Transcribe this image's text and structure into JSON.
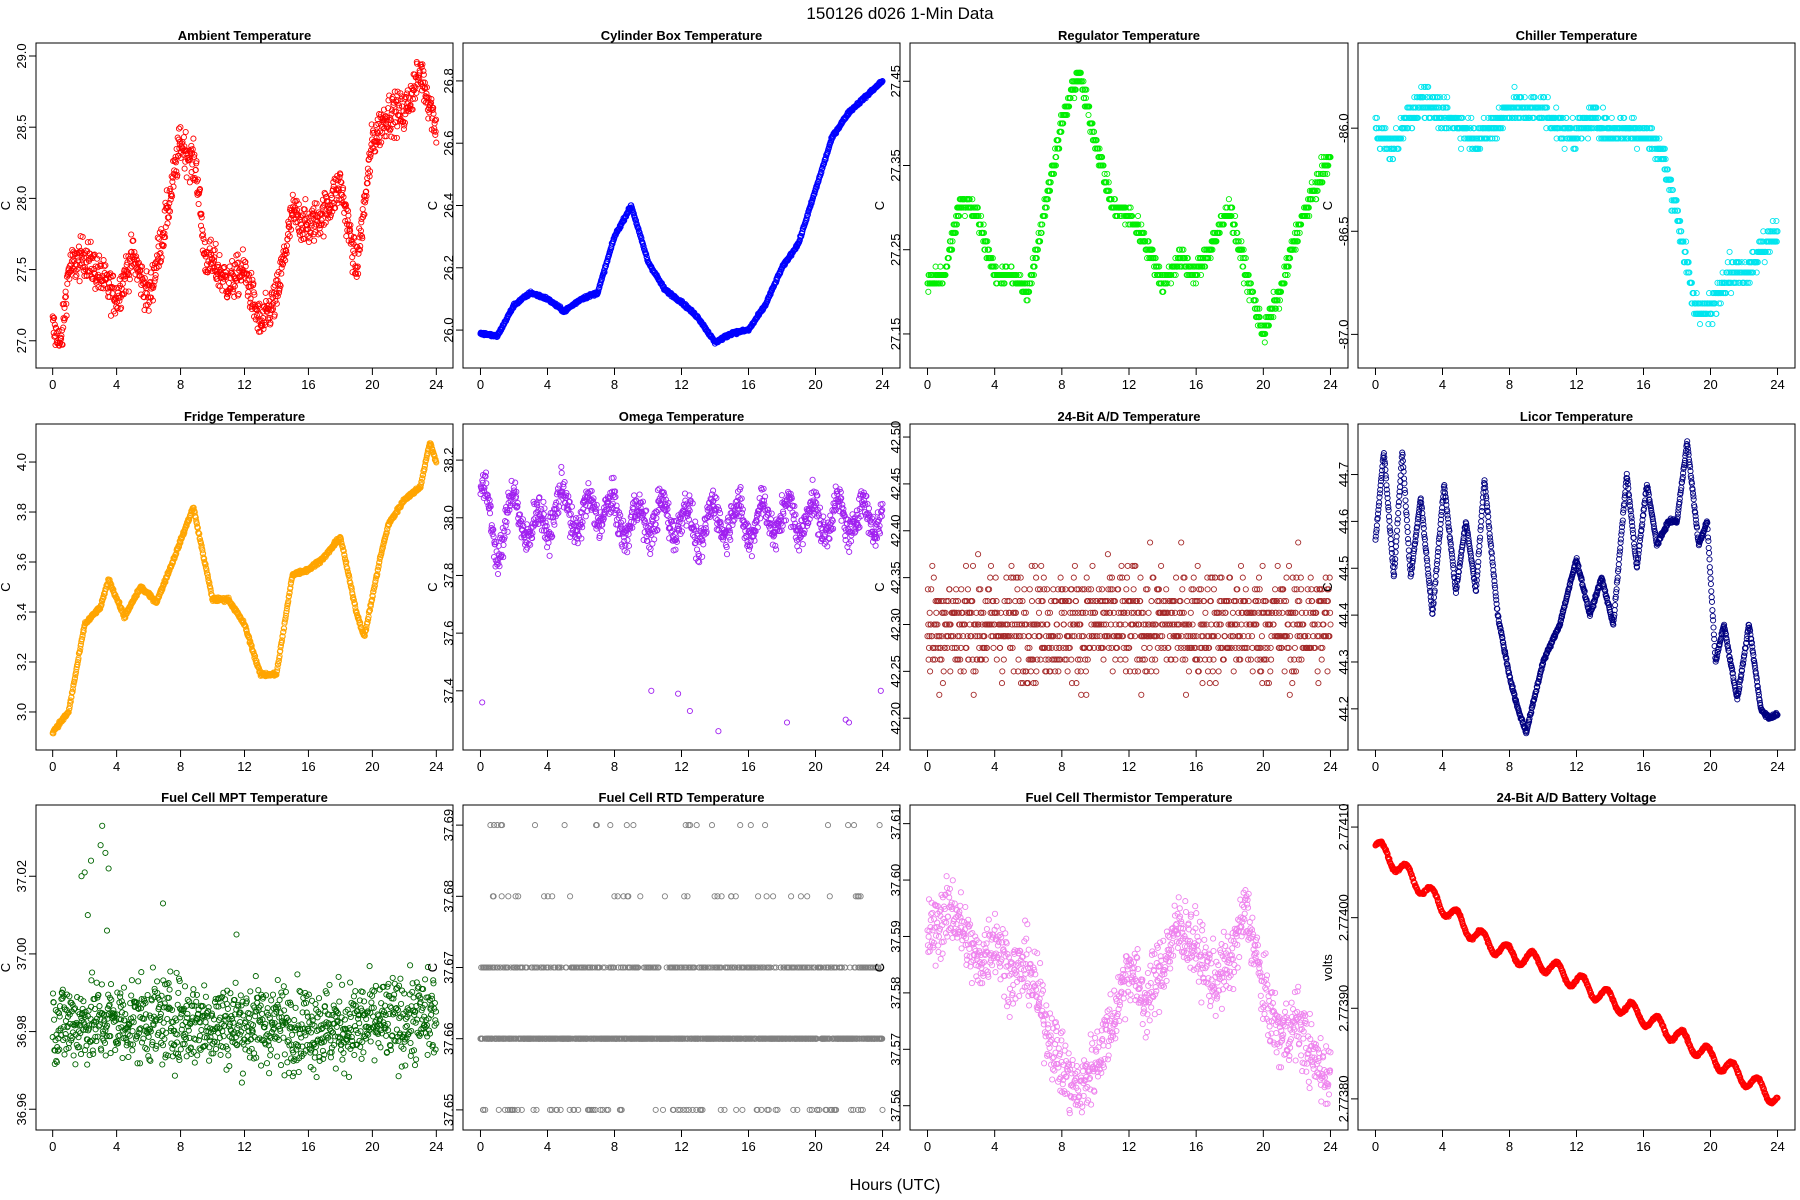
{
  "figure": {
    "title": "150126    d026    1-Min Data",
    "xlabel": "Hours (UTC)"
  },
  "chart_data": [
    {
      "type": "scatter",
      "title": "Ambient Temperature",
      "ylabel": "C",
      "color": "#ff0000",
      "xlim": [
        0,
        24
      ],
      "xticks": [
        0,
        4,
        8,
        12,
        16,
        20,
        24
      ],
      "ylim": [
        26.9,
        29.0
      ],
      "yticks": [
        "27.0",
        "27.5",
        "28.0",
        "28.5",
        "29.0"
      ],
      "keypoints": [
        [
          0,
          27.1
        ],
        [
          0.5,
          26.95
        ],
        [
          1,
          27.5
        ],
        [
          2,
          27.6
        ],
        [
          3,
          27.45
        ],
        [
          4,
          27.3
        ],
        [
          5,
          27.6
        ],
        [
          6,
          27.3
        ],
        [
          7,
          27.8
        ],
        [
          8,
          28.4
        ],
        [
          8.5,
          28.3
        ],
        [
          9,
          28.2
        ],
        [
          9.5,
          27.6
        ],
        [
          10,
          27.55
        ],
        [
          11,
          27.4
        ],
        [
          12,
          27.5
        ],
        [
          13,
          27.1
        ],
        [
          14,
          27.3
        ],
        [
          15,
          27.9
        ],
        [
          16,
          27.8
        ],
        [
          17,
          27.9
        ],
        [
          18,
          28.1
        ],
        [
          19,
          27.5
        ],
        [
          20,
          28.4
        ],
        [
          21,
          28.6
        ],
        [
          22,
          28.6
        ],
        [
          23,
          28.9
        ],
        [
          24,
          28.5
        ]
      ],
      "noise": 0.14
    },
    {
      "type": "scatter",
      "title": "Cylinder Box Temperature",
      "ylabel": "C",
      "color": "#0000ff",
      "xlim": [
        0,
        24
      ],
      "xticks": [
        0,
        4,
        8,
        12,
        16,
        20,
        24
      ],
      "ylim": [
        25.92,
        26.88
      ],
      "yticks": [
        "26.0",
        "26.2",
        "26.4",
        "26.6",
        "26.8"
      ],
      "keypoints": [
        [
          0,
          25.99
        ],
        [
          1,
          25.98
        ],
        [
          2,
          26.08
        ],
        [
          3,
          26.12
        ],
        [
          4,
          26.1
        ],
        [
          5,
          26.06
        ],
        [
          6,
          26.1
        ],
        [
          7,
          26.12
        ],
        [
          8,
          26.3
        ],
        [
          9,
          26.4
        ],
        [
          10,
          26.22
        ],
        [
          11,
          26.13
        ],
        [
          12,
          26.09
        ],
        [
          13,
          26.04
        ],
        [
          14,
          25.96
        ],
        [
          15,
          25.99
        ],
        [
          16,
          26.0
        ],
        [
          17,
          26.08
        ],
        [
          18,
          26.2
        ],
        [
          19,
          26.28
        ],
        [
          20,
          26.45
        ],
        [
          21,
          26.62
        ],
        [
          22,
          26.7
        ],
        [
          23,
          26.75
        ],
        [
          24,
          26.8
        ]
      ],
      "noise": 0.005
    },
    {
      "type": "scatter",
      "title": "Regulator Temperature",
      "ylabel": "C",
      "color": "#00ee00",
      "xlim": [
        0,
        24
      ],
      "xticks": [
        0,
        4,
        8,
        12,
        16,
        20,
        24
      ],
      "ylim": [
        27.125,
        27.48
      ],
      "yticks": [
        "27.15",
        "27.25",
        "27.35",
        "27.45"
      ],
      "keypoints": [
        [
          0,
          27.21
        ],
        [
          1,
          27.22
        ],
        [
          2,
          27.31
        ],
        [
          3,
          27.29
        ],
        [
          4,
          27.22
        ],
        [
          5,
          27.22
        ],
        [
          6,
          27.2
        ],
        [
          7,
          27.3
        ],
        [
          8,
          27.4
        ],
        [
          9,
          27.46
        ],
        [
          10,
          27.38
        ],
        [
          11,
          27.3
        ],
        [
          12,
          27.29
        ],
        [
          13,
          27.26
        ],
        [
          14,
          27.21
        ],
        [
          15,
          27.24
        ],
        [
          16,
          27.22
        ],
        [
          17,
          27.26
        ],
        [
          18,
          27.3
        ],
        [
          19,
          27.22
        ],
        [
          20,
          27.15
        ],
        [
          21,
          27.2
        ],
        [
          22,
          27.27
        ],
        [
          23,
          27.32
        ],
        [
          24,
          27.36
        ]
      ],
      "noise": 0.012,
      "quant": 0.01
    },
    {
      "type": "scatter",
      "title": "Chiller Temperature",
      "ylabel": "C",
      "color": "#00e5ee",
      "xlim": [
        0,
        24
      ],
      "xticks": [
        0,
        4,
        8,
        12,
        16,
        20,
        24
      ],
      "ylim": [
        -87.1,
        -85.65
      ],
      "yticks": [
        "-87.0",
        "-86.5",
        "-86.0"
      ],
      "keypoints": [
        [
          0,
          -86.0
        ],
        [
          1,
          -86.1
        ],
        [
          2,
          -85.95
        ],
        [
          3,
          -85.85
        ],
        [
          4,
          -85.95
        ],
        [
          5,
          -85.98
        ],
        [
          6,
          -86.05
        ],
        [
          7,
          -86.0
        ],
        [
          8,
          -85.9
        ],
        [
          9,
          -85.92
        ],
        [
          10,
          -85.9
        ],
        [
          11,
          -86.0
        ],
        [
          12,
          -86.02
        ],
        [
          13,
          -85.95
        ],
        [
          14,
          -86.02
        ],
        [
          15,
          -86.0
        ],
        [
          16,
          -86.02
        ],
        [
          17,
          -86.1
        ],
        [
          18,
          -86.4
        ],
        [
          19,
          -86.85
        ],
        [
          20,
          -86.9
        ],
        [
          21,
          -86.7
        ],
        [
          22,
          -86.7
        ],
        [
          23,
          -86.6
        ],
        [
          24,
          -86.5
        ]
      ],
      "noise": 0.07,
      "quant": 0.05
    },
    {
      "type": "scatter",
      "title": "Fridge Temperature",
      "ylabel": "C",
      "color": "#ffa500",
      "xlim": [
        0,
        24
      ],
      "xticks": [
        0,
        4,
        8,
        12,
        16,
        20,
        24
      ],
      "ylim": [
        2.9,
        4.1
      ],
      "yticks": [
        "3.0",
        "3.2",
        "3.4",
        "3.6",
        "3.8",
        "4.0"
      ],
      "keypoints": [
        [
          0,
          2.92
        ],
        [
          1,
          3.0
        ],
        [
          2,
          3.35
        ],
        [
          3,
          3.42
        ],
        [
          3.5,
          3.53
        ],
        [
          4.5,
          3.38
        ],
        [
          5.5,
          3.5
        ],
        [
          6.5,
          3.44
        ],
        [
          7.5,
          3.6
        ],
        [
          8.8,
          3.82
        ],
        [
          10,
          3.45
        ],
        [
          11,
          3.45
        ],
        [
          12,
          3.35
        ],
        [
          13,
          3.15
        ],
        [
          14,
          3.15
        ],
        [
          15,
          3.55
        ],
        [
          16,
          3.57
        ],
        [
          17,
          3.62
        ],
        [
          18,
          3.7
        ],
        [
          19,
          3.4
        ],
        [
          19.5,
          3.3
        ],
        [
          20.5,
          3.62
        ],
        [
          21,
          3.75
        ],
        [
          22,
          3.85
        ],
        [
          23,
          3.9
        ],
        [
          23.6,
          4.08
        ],
        [
          24,
          4.0
        ]
      ],
      "noise": 0.008
    },
    {
      "type": "scatter",
      "title": "Omega Temperature",
      "ylabel": "C",
      "color": "#a020f0",
      "xlim": [
        0,
        24
      ],
      "xticks": [
        0,
        4,
        8,
        12,
        16,
        20,
        24
      ],
      "ylim": [
        37.24,
        38.28
      ],
      "yticks": [
        "37.4",
        "37.6",
        "37.8",
        "38.0",
        "38.2"
      ],
      "keypoints": [
        [
          0,
          38.1
        ],
        [
          1,
          37.9
        ],
        [
          2,
          38.05
        ],
        [
          3,
          37.95
        ],
        [
          4,
          38.0
        ],
        [
          5,
          38.05
        ],
        [
          6,
          37.98
        ],
        [
          7,
          38.05
        ],
        [
          8,
          38.0
        ],
        [
          9,
          37.98
        ],
        [
          10,
          38.0
        ],
        [
          11,
          38.0
        ],
        [
          12,
          38.0
        ],
        [
          13,
          37.95
        ],
        [
          14,
          38.0
        ],
        [
          15,
          38.0
        ],
        [
          16,
          37.98
        ],
        [
          17,
          38.0
        ],
        [
          18,
          38.0
        ],
        [
          19,
          38.0
        ],
        [
          20,
          38.0
        ],
        [
          21,
          38.0
        ],
        [
          22,
          38.0
        ],
        [
          23,
          38.0
        ],
        [
          24,
          38.02
        ]
      ],
      "noise": 0.06,
      "osc": 0.12,
      "outliers": [
        [
          0.1,
          37.36
        ],
        [
          10.2,
          37.4
        ],
        [
          11.8,
          37.39
        ],
        [
          12.5,
          37.33
        ],
        [
          14.2,
          37.26
        ],
        [
          18.3,
          37.29
        ],
        [
          21.8,
          37.3
        ],
        [
          22,
          37.29
        ],
        [
          23.9,
          37.4
        ]
      ]
    },
    {
      "type": "scatter",
      "title": "24-Bit A/D Temperature",
      "ylabel": "C",
      "color": "#a52a2a",
      "xlim": [
        0,
        24
      ],
      "xticks": [
        0,
        4,
        8,
        12,
        16,
        20,
        24
      ],
      "ylim": [
        42.18,
        42.5
      ],
      "yticks": [
        "42.20",
        "42.25",
        "42.30",
        "42.35",
        "42.40",
        "42.45",
        "42.50"
      ],
      "keypoints": [
        [
          0,
          42.3
        ],
        [
          6,
          42.3
        ],
        [
          12,
          42.3
        ],
        [
          18,
          42.3
        ],
        [
          24,
          42.3
        ]
      ],
      "noise": 0.06,
      "quant": 0.0125
    },
    {
      "type": "scatter",
      "title": "Licor Temperature",
      "ylabel": "C",
      "color": "#000080",
      "xlim": [
        0,
        24
      ],
      "xticks": [
        0,
        4,
        8,
        12,
        16,
        20,
        24
      ],
      "ylim": [
        44.14,
        44.78
      ],
      "yticks": [
        "44.2",
        "44.3",
        "44.4",
        "44.5",
        "44.6",
        "44.7"
      ],
      "keypoints": [
        [
          0,
          44.56
        ],
        [
          0.5,
          44.75
        ],
        [
          1.1,
          44.48
        ],
        [
          1.6,
          44.75
        ],
        [
          2.1,
          44.48
        ],
        [
          2.7,
          44.65
        ],
        [
          3.4,
          44.4
        ],
        [
          4.1,
          44.68
        ],
        [
          4.8,
          44.45
        ],
        [
          5.4,
          44.6
        ],
        [
          6,
          44.45
        ],
        [
          6.5,
          44.69
        ],
        [
          7.3,
          44.4
        ],
        [
          8,
          44.27
        ],
        [
          8.5,
          44.2
        ],
        [
          9,
          44.15
        ],
        [
          10,
          44.3
        ],
        [
          11,
          44.38
        ],
        [
          12,
          44.52
        ],
        [
          12.8,
          44.4
        ],
        [
          13.5,
          44.48
        ],
        [
          14.2,
          44.38
        ],
        [
          15,
          44.7
        ],
        [
          15.6,
          44.5
        ],
        [
          16.2,
          44.68
        ],
        [
          16.8,
          44.55
        ],
        [
          17.5,
          44.6
        ],
        [
          18,
          44.6
        ],
        [
          18.6,
          44.77
        ],
        [
          19.3,
          44.55
        ],
        [
          19.8,
          44.6
        ],
        [
          20.3,
          44.3
        ],
        [
          20.8,
          44.38
        ],
        [
          21.6,
          44.22
        ],
        [
          22.3,
          44.38
        ],
        [
          23,
          44.2
        ],
        [
          23.5,
          44.18
        ],
        [
          24,
          44.19
        ]
      ],
      "noise": 0.004
    },
    {
      "type": "scatter",
      "title": "Fuel Cell MPT Temperature",
      "ylabel": "C",
      "color": "#006400",
      "xlim": [
        0,
        24
      ],
      "xticks": [
        0,
        4,
        8,
        12,
        16,
        20,
        24
      ],
      "ylim": [
        36.958,
        37.035
      ],
      "yticks": [
        "36.96",
        "36.98",
        "37.00",
        "37.02"
      ],
      "keypoints": [
        [
          0,
          36.982
        ],
        [
          6,
          36.983
        ],
        [
          12,
          36.982
        ],
        [
          18,
          36.981
        ],
        [
          24,
          36.984
        ]
      ],
      "noise": 0.011,
      "outliers": [
        [
          1.8,
          37.02
        ],
        [
          2,
          37.021
        ],
        [
          2.4,
          37.024
        ],
        [
          3,
          37.028
        ],
        [
          3.1,
          37.033
        ],
        [
          3.3,
          37.026
        ],
        [
          3.5,
          37.022
        ],
        [
          2.2,
          37.01
        ],
        [
          3.4,
          37.006
        ],
        [
          6.9,
          37.013
        ],
        [
          11.5,
          37.005
        ]
      ]
    },
    {
      "type": "scatter",
      "title": "Fuel Cell RTD Temperature",
      "ylabel": "C",
      "color": "#808080",
      "xlim": [
        0,
        24
      ],
      "xticks": [
        0,
        4,
        8,
        12,
        16,
        20,
        24
      ],
      "ylim": [
        37.649,
        37.691
      ],
      "yticks": [
        "37.65",
        "37.66",
        "37.67",
        "37.68",
        "37.69"
      ],
      "levels": [
        37.65,
        37.66,
        37.67,
        37.68,
        37.69
      ],
      "level_weights": [
        0.05,
        0.62,
        0.28,
        0.03,
        0.02
      ]
    },
    {
      "type": "scatter",
      "title": "Fuel Cell Thermistor Temperature",
      "ylabel": "C",
      "color": "#ee82ee",
      "xlim": [
        0,
        24
      ],
      "xticks": [
        0,
        4,
        8,
        12,
        16,
        20,
        24
      ],
      "ylim": [
        37.558,
        37.611
      ],
      "yticks": [
        "37.56",
        "37.57",
        "37.58",
        "37.59",
        "37.60",
        "37.61"
      ],
      "keypoints": [
        [
          0,
          37.59
        ],
        [
          1.5,
          37.595
        ],
        [
          3,
          37.585
        ],
        [
          4,
          37.59
        ],
        [
          5,
          37.583
        ],
        [
          6,
          37.585
        ],
        [
          7,
          37.575
        ],
        [
          8,
          37.567
        ],
        [
          9,
          37.562
        ],
        [
          10,
          37.568
        ],
        [
          11,
          37.575
        ],
        [
          12,
          37.585
        ],
        [
          13,
          37.578
        ],
        [
          14,
          37.585
        ],
        [
          15,
          37.592
        ],
        [
          16,
          37.588
        ],
        [
          17,
          37.582
        ],
        [
          18,
          37.585
        ],
        [
          19,
          37.595
        ],
        [
          20,
          37.58
        ],
        [
          21,
          37.572
        ],
        [
          22,
          37.575
        ],
        [
          23,
          37.568
        ],
        [
          24,
          37.565
        ]
      ],
      "noise": 0.006
    },
    {
      "type": "scatter",
      "title": "24-Bit A/D Battery Voltage",
      "ylabel": "volts",
      "color": "#ff0000",
      "xlim": [
        0,
        24
      ],
      "xticks": [
        0,
        4,
        8,
        12,
        16,
        20,
        24
      ],
      "ylim": [
        2.77378,
        2.77411
      ],
      "yticks": [
        "2.77380",
        "2.77390",
        "2.77400",
        "2.77410"
      ],
      "keypoints": [
        [
          0,
          2.77408
        ],
        [
          6,
          2.77398
        ],
        [
          8,
          2.77396
        ],
        [
          10,
          2.77395
        ],
        [
          14,
          2.77391
        ],
        [
          18,
          2.77387
        ],
        [
          24,
          2.7738
        ]
      ],
      "noise": 1.5e-06,
      "osc": 1.8e-05
    }
  ]
}
